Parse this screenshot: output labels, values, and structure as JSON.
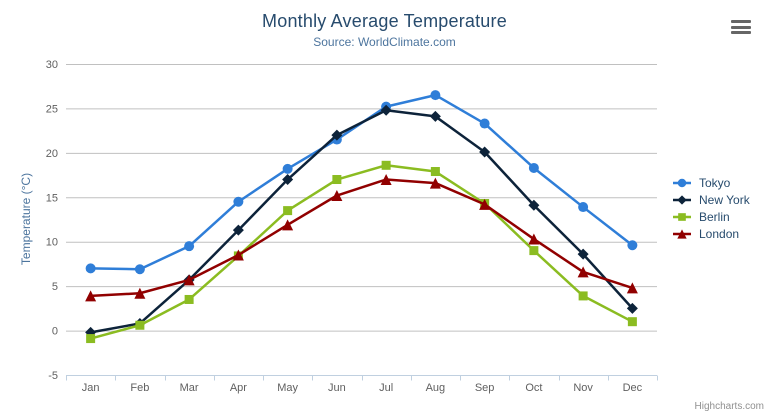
{
  "header": {
    "title": "Monthly Average Temperature",
    "subtitle": "Source: WorldClimate.com"
  },
  "menu_icon": "hamburger-icon",
  "credits_label": "Highcharts.com",
  "styles": {
    "title_color": "#274b6d",
    "subtitle_color": "#4d759e",
    "axis_label_color": "#606060",
    "axis_title_color": "#4d759e",
    "grid_color": "#c0c0c0",
    "axis_line_color": "#c0d0e0",
    "legend_text_color": "#274b6d",
    "credits_color": "#909090",
    "menu_icon_color": "#666666"
  },
  "chart_data": {
    "type": "line",
    "title": "Monthly Average Temperature",
    "subtitle": "Source: WorldClimate.com",
    "xlabel": "",
    "ylabel": "Temperature (°C)",
    "categories": [
      "Jan",
      "Feb",
      "Mar",
      "Apr",
      "May",
      "Jun",
      "Jul",
      "Aug",
      "Sep",
      "Oct",
      "Nov",
      "Dec"
    ],
    "ylim": [
      -5,
      30
    ],
    "yticks": [
      -5,
      0,
      5,
      10,
      15,
      20,
      25,
      30
    ],
    "grid": true,
    "legend_position": "right",
    "series": [
      {
        "name": "Tokyo",
        "color": "#2f7ed8",
        "marker": "circle",
        "values": [
          7.0,
          6.9,
          9.5,
          14.5,
          18.2,
          21.5,
          25.2,
          26.5,
          23.3,
          18.3,
          13.9,
          9.6
        ]
      },
      {
        "name": "New York",
        "color": "#0d233a",
        "marker": "diamond",
        "values": [
          -0.2,
          0.8,
          5.7,
          11.3,
          17.0,
          22.0,
          24.8,
          24.1,
          20.1,
          14.1,
          8.6,
          2.5
        ]
      },
      {
        "name": "Berlin",
        "color": "#8bbc21",
        "marker": "square",
        "values": [
          -0.9,
          0.6,
          3.5,
          8.4,
          13.5,
          17.0,
          18.6,
          17.9,
          14.3,
          9.0,
          3.9,
          1.0
        ]
      },
      {
        "name": "London",
        "color": "#910000",
        "marker": "triangle",
        "values": [
          3.9,
          4.2,
          5.7,
          8.5,
          11.9,
          15.2,
          17.0,
          16.6,
          14.2,
          10.3,
          6.6,
          4.8
        ]
      }
    ]
  }
}
